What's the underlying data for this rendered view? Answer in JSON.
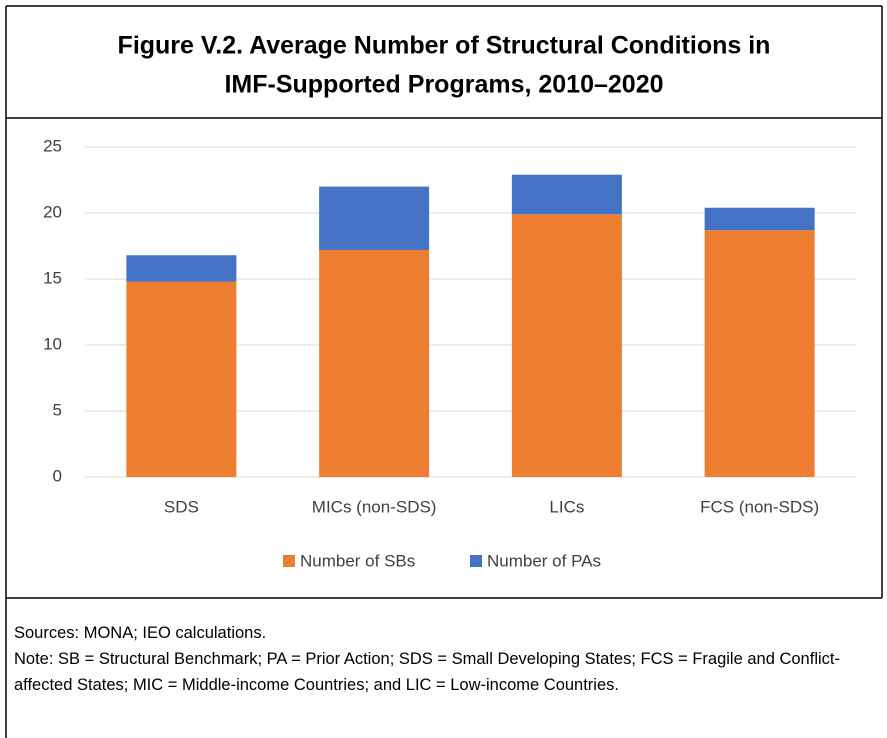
{
  "chart_data": {
    "type": "stacked_bar",
    "title": [
      "Figure V.2. Average Number of Structural Conditions in",
      "IMF-Supported Programs, 2010–2020"
    ],
    "categories": [
      "SDS",
      "MICs (non-SDS)",
      "LICs",
      "FCS (non-SDS)"
    ],
    "series": [
      {
        "name": "Number of SBs",
        "color": "#ed7d31",
        "values": [
          14.8,
          17.2,
          19.9,
          18.7
        ]
      },
      {
        "name": "Number of PAs",
        "color": "#4472c4",
        "values": [
          2.0,
          4.8,
          3.0,
          1.7
        ]
      }
    ],
    "ylim": [
      0,
      25
    ],
    "yticks": [
      0,
      5,
      10,
      15,
      20,
      25
    ],
    "grid": true,
    "legend": "bottom"
  },
  "sources": "Sources: MONA; IEO calculations.",
  "note": "Note: SB = Structural Benchmark; PA = Prior Action; SDS = Small Developing States; FCS = Fragile and Conflict-affected States; MIC = Middle-income Countries; and LIC = Low-income Countries."
}
